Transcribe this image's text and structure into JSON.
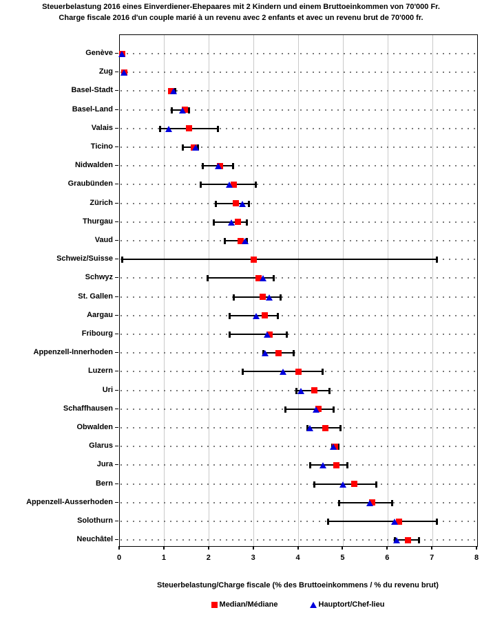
{
  "title_line1": "Steuerbelastung 2016 eines Einverdiener-Ehepaares mit 2 Kindern und einem Bruttoeinkommen von 70'000 Fr.",
  "title_line2": "Charge fiscale 2016 d'un couple marié à un revenu avec 2 enfants et avec un revenu brut de 70'000 fr.",
  "legend": {
    "median_label": "Median/Médiane",
    "hauptort_label": "Hauptort/Chef-lieu"
  },
  "colors": {
    "median": "#ff0000",
    "hauptort": "#0000dd",
    "grid": "#c9c9c9",
    "frame": "#000000",
    "row_dots": "#777777"
  },
  "chart_data": {
    "type": "scatter",
    "subtype": "dot-range-plot",
    "title": "Steuerbelastung 2016 eines Einverdiener-Ehepaares mit 2 Kindern und einem Bruttoeinkommen von 70'000 Fr. / Charge fiscale 2016 d'un couple marié à un revenu avec 2 enfants et avec un revenu brut de 70'000 fr.",
    "xlabel": "Steuerbelastung/Charge fiscale (% des Bruttoeinkommens / % du revenu brut)",
    "xlim": [
      0,
      8
    ],
    "xticks": [
      0,
      1,
      2,
      3,
      4,
      5,
      6,
      7,
      8
    ],
    "grid": "vertical-light-gray",
    "legend_position": "bottom",
    "series_legend": [
      "Median/Médiane",
      "Hauptort/Chef-lieu"
    ],
    "rows": [
      {
        "canton": "Genève",
        "min": 0.0,
        "max": 0.1,
        "median": 0.05,
        "hauptort": 0.05
      },
      {
        "canton": "Zug",
        "min": 0.05,
        "max": 0.15,
        "median": 0.1,
        "hauptort": 0.1
      },
      {
        "canton": "Basel-Stadt",
        "min": 1.1,
        "max": 1.25,
        "median": 1.15,
        "hauptort": 1.2
      },
      {
        "canton": "Basel-Land",
        "min": 1.15,
        "max": 1.55,
        "median": 1.45,
        "hauptort": 1.4
      },
      {
        "canton": "Valais",
        "min": 0.9,
        "max": 2.2,
        "median": 1.55,
        "hauptort": 1.1
      },
      {
        "canton": "Ticino",
        "min": 1.4,
        "max": 1.75,
        "median": 1.65,
        "hauptort": 1.7
      },
      {
        "canton": "Nidwalden",
        "min": 1.85,
        "max": 2.55,
        "median": 2.25,
        "hauptort": 2.2
      },
      {
        "canton": "Graubünden",
        "min": 1.8,
        "max": 3.05,
        "median": 2.55,
        "hauptort": 2.45
      },
      {
        "canton": "Zürich",
        "min": 2.15,
        "max": 2.9,
        "median": 2.6,
        "hauptort": 2.75
      },
      {
        "canton": "Thurgau",
        "min": 2.1,
        "max": 2.85,
        "median": 2.65,
        "hauptort": 2.5
      },
      {
        "canton": "Vaud",
        "min": 2.35,
        "max": 2.85,
        "median": 2.7,
        "hauptort": 2.8
      },
      {
        "canton": "Schweiz/Suisse",
        "min": 0.05,
        "max": 7.1,
        "median": 3.0,
        "hauptort": null
      },
      {
        "canton": "Schwyz",
        "min": 1.95,
        "max": 3.45,
        "median": 3.1,
        "hauptort": 3.2
      },
      {
        "canton": "St. Gallen",
        "min": 2.55,
        "max": 3.6,
        "median": 3.2,
        "hauptort": 3.35
      },
      {
        "canton": "Aargau",
        "min": 2.45,
        "max": 3.55,
        "median": 3.25,
        "hauptort": 3.05
      },
      {
        "canton": "Fribourg",
        "min": 2.45,
        "max": 3.75,
        "median": 3.35,
        "hauptort": 3.3
      },
      {
        "canton": "Appenzell-Innerhoden",
        "min": 3.2,
        "max": 3.9,
        "median": 3.55,
        "hauptort": 3.25
      },
      {
        "canton": "Luzern",
        "min": 2.75,
        "max": 4.55,
        "median": 4.0,
        "hauptort": 3.65
      },
      {
        "canton": "Uri",
        "min": 3.95,
        "max": 4.7,
        "median": 4.35,
        "hauptort": 4.05
      },
      {
        "canton": "Schaffhausen",
        "min": 3.7,
        "max": 4.8,
        "median": 4.45,
        "hauptort": 4.4
      },
      {
        "canton": "Obwalden",
        "min": 4.2,
        "max": 4.95,
        "median": 4.6,
        "hauptort": 4.25
      },
      {
        "canton": "Glarus",
        "min": 4.75,
        "max": 4.9,
        "median": 4.82,
        "hauptort": 4.78
      },
      {
        "canton": "Jura",
        "min": 4.25,
        "max": 5.1,
        "median": 4.85,
        "hauptort": 4.55
      },
      {
        "canton": "Bern",
        "min": 4.35,
        "max": 5.75,
        "median": 5.25,
        "hauptort": 5.0
      },
      {
        "canton": "Appenzell-Ausserhoden",
        "min": 4.9,
        "max": 6.1,
        "median": 5.65,
        "hauptort": 5.6
      },
      {
        "canton": "Solothurn",
        "min": 4.65,
        "max": 7.1,
        "median": 6.25,
        "hauptort": 6.15
      },
      {
        "canton": "Neuchâtel",
        "min": 6.15,
        "max": 6.7,
        "median": 6.45,
        "hauptort": 6.2
      }
    ]
  }
}
